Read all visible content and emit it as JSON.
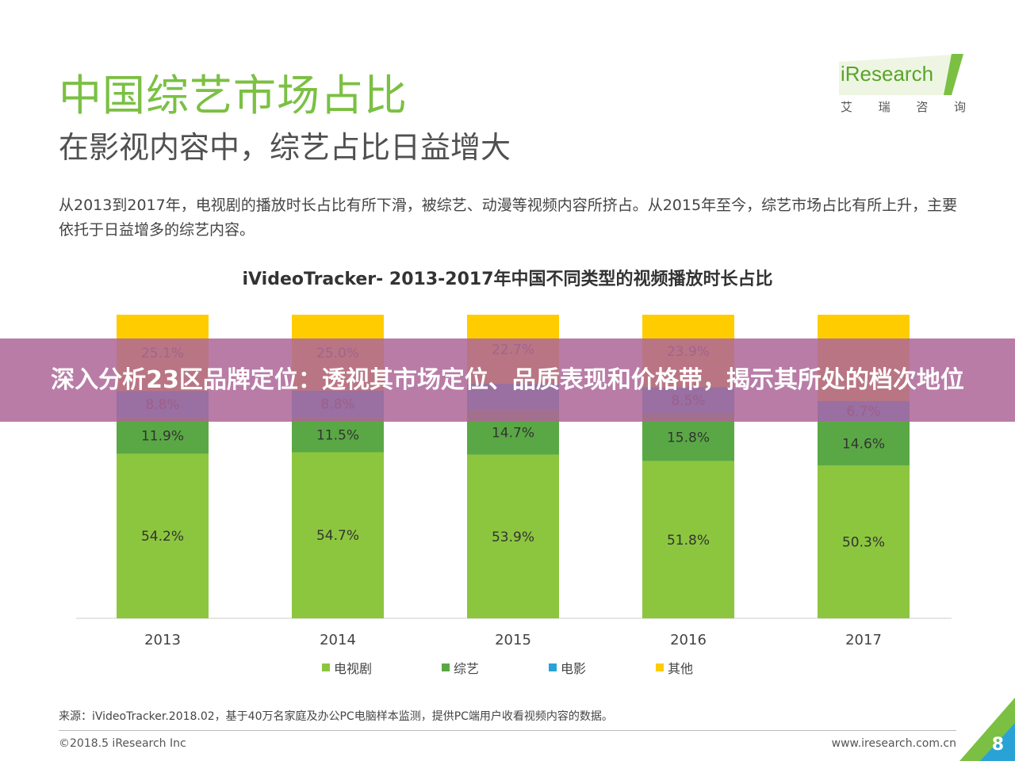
{
  "header": {
    "title": "中国综艺市场占比",
    "subtitle": "在影视内容中，综艺占比日益增大"
  },
  "logo": {
    "name": "iResearch",
    "chars": [
      "艾",
      "瑞",
      "咨",
      "询"
    ],
    "brand_color": "#7bc043"
  },
  "description": "从2013到2017年，电视剧的播放时长占比有所下滑，被综艺、动漫等视频内容所挤占。从2015年至今，综艺市场占比有所上升，主要依托于日益增多的综艺内容。",
  "chart_data": {
    "type": "bar",
    "stacked": true,
    "title": "iVideoTracker- 2013-2017年中国不同类型的视频播放时长占比",
    "categories": [
      "2013",
      "2014",
      "2015",
      "2016",
      "2017"
    ],
    "ylim": [
      0,
      100
    ],
    "legend_placement": "bottom",
    "series": [
      {
        "name": "电视剧",
        "color": "#8cc63f",
        "values": [
          54.2,
          54.7,
          53.9,
          51.8,
          50.3
        ],
        "labels": [
          "54.2%",
          "54.7%",
          "53.9%",
          "51.8%",
          "50.3%"
        ]
      },
      {
        "name": "综艺",
        "color": "#5aa845",
        "values": [
          11.9,
          11.5,
          14.7,
          15.8,
          14.6
        ],
        "labels": [
          "11.9%",
          "11.5%",
          "14.7%",
          "15.8%",
          "14.6%"
        ]
      },
      {
        "name": "电影",
        "color": "#29a3d6",
        "values": [
          8.8,
          8.8,
          8.7,
          8.5,
          6.7
        ],
        "labels": [
          "8.8%",
          "8.8%",
          "",
          "8.5%",
          "6.7%"
        ]
      },
      {
        "name": "其他",
        "color": "#ffcc00",
        "values": [
          25.1,
          25.0,
          22.7,
          23.9,
          28.4
        ],
        "labels": [
          "25.1%",
          "25.0%",
          "22.7%",
          "23.9%",
          ""
        ]
      }
    ]
  },
  "footer": {
    "source": "来源：iVideoTracker.2018.02，基于40万名家庭及办公PC电脑样本监测，提供PC端用户收看视频内容的数据。",
    "copyright": "©2018.5 iResearch Inc",
    "website": "www.iresearch.com.cn",
    "page_number": "8"
  },
  "banner": {
    "text": "深入分析23区品牌定位：透视其市场定位、品质表现和价格带，揭示其所处的档次地位"
  }
}
